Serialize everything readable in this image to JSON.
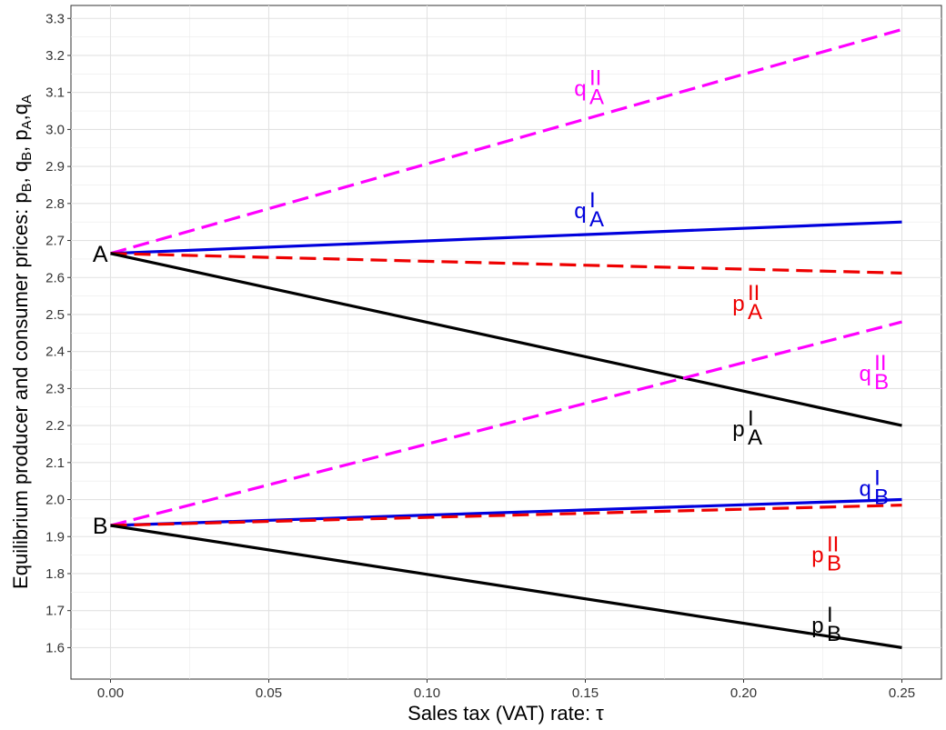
{
  "chart_data": {
    "type": "line",
    "xlabel": "Sales tax (VAT) rate: τ",
    "ylabel": "Equilibrium producer and consumer prices:  p_B, q_B, p_A, q_A",
    "ylabel_parts": [
      {
        "t": "Equilibrium producer and consumer prices:  p"
      },
      {
        "t": "B",
        "sub": true
      },
      {
        "t": ", q"
      },
      {
        "t": "B",
        "sub": true
      },
      {
        "t": ", p"
      },
      {
        "t": "A",
        "sub": true
      },
      {
        "t": ",q"
      },
      {
        "t": "A",
        "sub": true
      }
    ],
    "xlim": [
      -0.0125,
      0.2625
    ],
    "ylim": [
      1.515,
      3.335
    ],
    "x_ticks": [
      0.0,
      0.05,
      0.1,
      0.15,
      0.2,
      0.25
    ],
    "x_tick_labels": [
      "0.00",
      "0.05",
      "0.10",
      "0.15",
      "0.20",
      "0.25"
    ],
    "y_ticks": [
      1.6,
      1.7,
      1.8,
      1.9,
      2.0,
      2.1,
      2.2,
      2.3,
      2.4,
      2.5,
      2.6,
      2.7,
      2.8,
      2.9,
      3.0,
      3.1,
      3.2,
      3.3
    ],
    "y_tick_labels": [
      "1.6",
      "1.7",
      "1.8",
      "1.9",
      "2.0",
      "2.1",
      "2.2",
      "2.3",
      "2.4",
      "2.5",
      "2.6",
      "2.7",
      "2.8",
      "2.9",
      "3.0",
      "3.1",
      "3.2",
      "3.3"
    ],
    "grid": true,
    "legend": "none",
    "series": [
      {
        "id": "qA-II",
        "label": {
          "base": "q",
          "sup": "II",
          "sub": "A"
        },
        "color": "#FF00FF",
        "dashed": true,
        "x": [
          0.0,
          0.25
        ],
        "y": [
          2.665,
          3.27
        ],
        "label_at": [
          0.151,
          3.11
        ]
      },
      {
        "id": "qA-I",
        "label": {
          "base": "q",
          "sup": "I",
          "sub": "A"
        },
        "color": "#0000DD",
        "dashed": false,
        "x": [
          0.0,
          0.25
        ],
        "y": [
          2.665,
          2.75
        ],
        "label_at": [
          0.151,
          2.78
        ]
      },
      {
        "id": "pA-II",
        "label": {
          "base": "p",
          "sup": "II",
          "sub": "A"
        },
        "color": "#EE0000",
        "dashed": true,
        "x": [
          0.0,
          0.25
        ],
        "y": [
          2.665,
          2.612
        ],
        "label_at": [
          0.201,
          2.53
        ]
      },
      {
        "id": "pA-I",
        "label": {
          "base": "p",
          "sup": "I",
          "sub": "A"
        },
        "color": "#000000",
        "dashed": false,
        "x": [
          0.0,
          0.25
        ],
        "y": [
          2.665,
          2.2
        ],
        "label_at": [
          0.201,
          2.19
        ]
      },
      {
        "id": "qB-II",
        "label": {
          "base": "q",
          "sup": "II",
          "sub": "B"
        },
        "color": "#FF00FF",
        "dashed": true,
        "x": [
          0.0,
          0.25
        ],
        "y": [
          1.93,
          2.48
        ],
        "label_at": [
          0.241,
          2.34
        ]
      },
      {
        "id": "qB-I",
        "label": {
          "base": "q",
          "sup": "I",
          "sub": "B"
        },
        "color": "#0000DD",
        "dashed": false,
        "x": [
          0.0,
          0.25
        ],
        "y": [
          1.93,
          2.0
        ],
        "label_at": [
          0.241,
          2.03
        ]
      },
      {
        "id": "pB-II",
        "label": {
          "base": "p",
          "sup": "II",
          "sub": "B"
        },
        "color": "#EE0000",
        "dashed": true,
        "x": [
          0.0,
          0.25
        ],
        "y": [
          1.93,
          1.985
        ],
        "label_at": [
          0.226,
          1.85
        ]
      },
      {
        "id": "pB-I",
        "label": {
          "base": "p",
          "sup": "I",
          "sub": "B"
        },
        "color": "#000000",
        "dashed": false,
        "x": [
          0.0,
          0.25
        ],
        "y": [
          1.93,
          1.6
        ],
        "label_at": [
          0.226,
          1.66
        ]
      }
    ],
    "point_labels": [
      {
        "text": "A",
        "x": 0.0,
        "y": 2.665
      },
      {
        "text": "B",
        "x": 0.0,
        "y": 1.93
      }
    ]
  }
}
